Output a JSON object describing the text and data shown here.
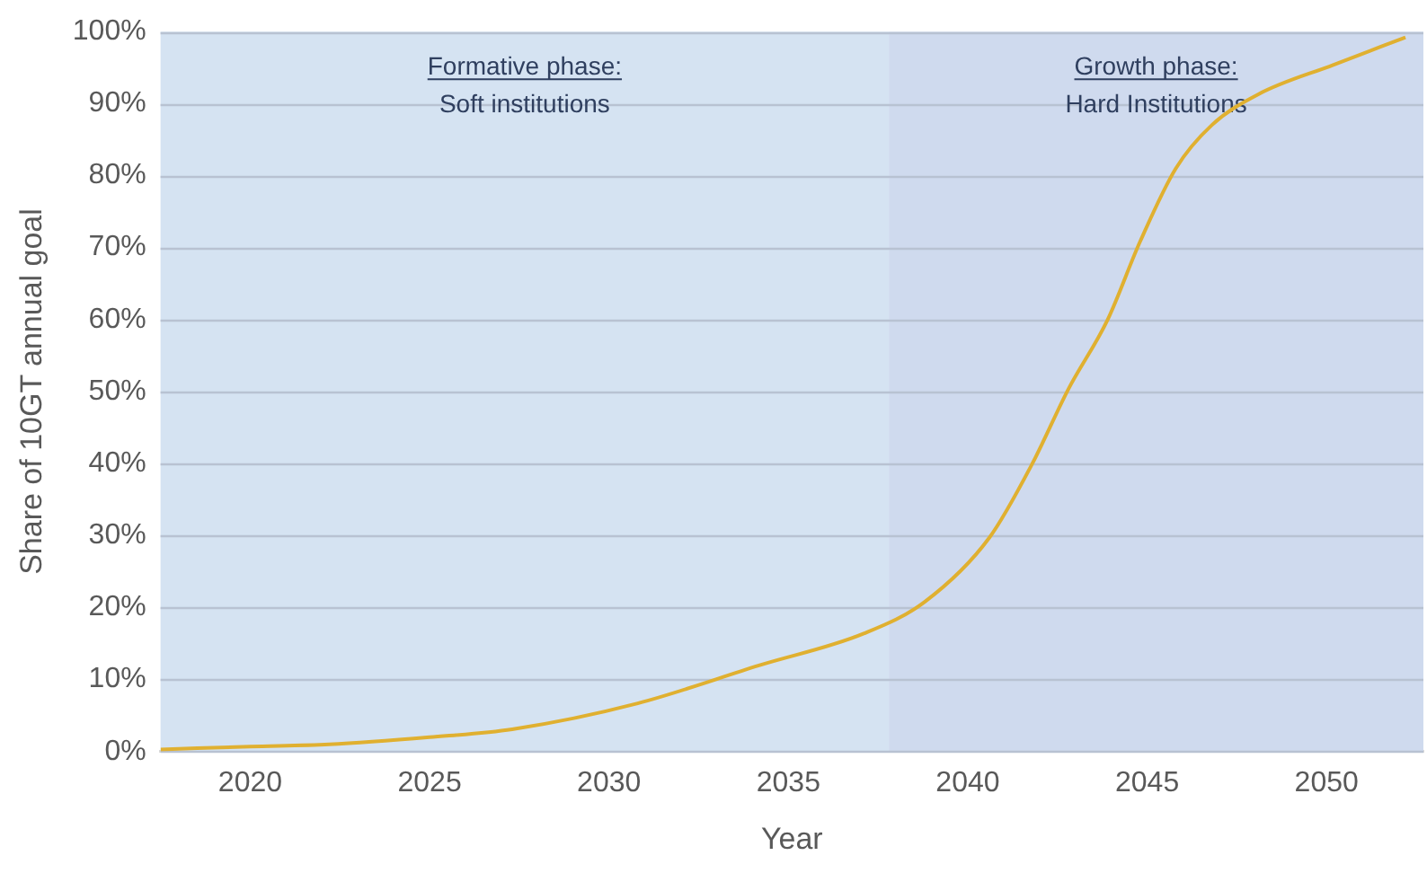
{
  "chart_data": {
    "type": "line",
    "xlabel": "Year",
    "ylabel": "Share of 10GT annual goal",
    "x": [
      2017.5,
      2020,
      2022.2,
      2025,
      2027.3,
      2030.8,
      2034.2,
      2037.1,
      2038.8,
      2040.6,
      2041.8,
      2042.8,
      2043.9,
      2044.8,
      2045.8,
      2046.8,
      2048.1,
      2050.2,
      2052.2
    ],
    "series": [
      {
        "color": "#e0b030",
        "values": [
          0.3,
          0.7,
          1,
          2,
          3.1,
          6.7,
          12,
          16.4,
          20.8,
          29.7,
          40,
          50.3,
          60,
          70.8,
          81,
          87,
          91.3,
          95.4,
          99.2
        ]
      }
    ],
    "xlim": [
      2017.5,
      2052.7
    ],
    "xticks": [
      2020,
      2025,
      2030,
      2035,
      2040,
      2045,
      2050
    ],
    "ylim": [
      0,
      100
    ],
    "yticks": [
      {
        "value": 0,
        "label": "0%"
      },
      {
        "value": 10,
        "label": "10%"
      },
      {
        "value": 20,
        "label": "20%"
      },
      {
        "value": 30,
        "label": "30%"
      },
      {
        "value": 40,
        "label": "40%"
      },
      {
        "value": 50,
        "label": "50%"
      },
      {
        "value": 60,
        "label": "60%"
      },
      {
        "value": 70,
        "label": "70%"
      },
      {
        "value": 80,
        "label": "80%"
      },
      {
        "value": 90,
        "label": "90%"
      },
      {
        "value": 100,
        "label": "100%"
      }
    ],
    "bands": [
      {
        "axis": "x",
        "from": 2017.5,
        "to": 2037.8,
        "label": "Formative phase:\nSoft institutions",
        "color": "#d5e3f2"
      },
      {
        "axis": "x",
        "from": 2037.8,
        "to": 2052.7,
        "label": "Growth phase:\nHard Institutions",
        "color": "#cfdaee"
      }
    ],
    "grid": "y",
    "legend": false,
    "marker": "none",
    "line_style": "solid"
  }
}
